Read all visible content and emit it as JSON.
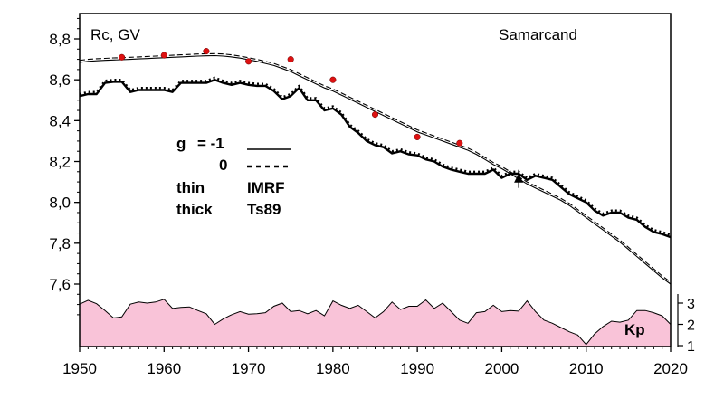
{
  "chart_data": {
    "type": "line",
    "title": "Samarcand",
    "ylabel": "Rc, GV",
    "kp_label": "Kp",
    "xlim": [
      1950,
      2020
    ],
    "ylim": [
      7.4,
      8.9
    ],
    "kp_ylim": [
      1,
      3
    ],
    "x_ticks": [
      1950,
      1960,
      1970,
      1980,
      1990,
      2000,
      2010,
      2020
    ],
    "x_tick_labels": [
      "1950",
      "1960",
      "1970",
      "1980",
      "1990",
      "2000",
      "2010",
      "2020"
    ],
    "y_ticks": [
      7.6,
      7.8,
      8.0,
      8.2,
      8.4,
      8.6,
      8.8
    ],
    "y_tick_labels": [
      "7,6",
      "7,8",
      "8,0",
      "8,2",
      "8,4",
      "8,6",
      "8,8"
    ],
    "kp_ticks": [
      1,
      2,
      3
    ],
    "kp_tick_labels": [
      "1",
      "2",
      "3"
    ],
    "legend": {
      "g_label": "g",
      "g_eq": "= -1",
      "zero_label": "0",
      "thin_label": "thin",
      "thin_model": "IMRF",
      "thick_label": "thick",
      "thick_model": "Ts89"
    },
    "x": [
      1950,
      1951,
      1952,
      1953,
      1954,
      1955,
      1956,
      1957,
      1958,
      1959,
      1960,
      1961,
      1962,
      1963,
      1964,
      1965,
      1966,
      1967,
      1968,
      1969,
      1970,
      1971,
      1972,
      1973,
      1974,
      1975,
      1976,
      1977,
      1978,
      1979,
      1980,
      1981,
      1982,
      1983,
      1984,
      1985,
      1986,
      1987,
      1988,
      1989,
      1990,
      1991,
      1992,
      1993,
      1994,
      1995,
      1996,
      1997,
      1998,
      1999,
      2000,
      2001,
      2002,
      2003,
      2004,
      2005,
      2006,
      2007,
      2008,
      2009,
      2010,
      2011,
      2012,
      2013,
      2014,
      2015,
      2016,
      2017,
      2018,
      2019,
      2020
    ],
    "series": [
      {
        "style": "thin-double-solid",
        "values": [
          8.685,
          8.69,
          8.693,
          8.695,
          8.697,
          8.698,
          8.7,
          8.702,
          8.704,
          8.706,
          8.708,
          8.71,
          8.712,
          8.714,
          8.716,
          8.717,
          8.718,
          8.716,
          8.712,
          8.706,
          8.698,
          8.69,
          8.68,
          8.67,
          8.655,
          8.64,
          8.62,
          8.6,
          8.58,
          8.56,
          8.545,
          8.525,
          8.505,
          8.485,
          8.465,
          8.445,
          8.425,
          8.405,
          8.385,
          8.365,
          8.345,
          8.33,
          8.315,
          8.3,
          8.285,
          8.27,
          8.255,
          8.235,
          8.21,
          8.185,
          8.165,
          8.14,
          8.115,
          8.09,
          8.07,
          8.05,
          8.03,
          8.01,
          7.985,
          7.955,
          7.925,
          7.895,
          7.865,
          7.835,
          7.805,
          7.77,
          7.735,
          7.7,
          7.665,
          7.63,
          7.6
        ]
      },
      {
        "style": "thin-dashed",
        "values": [
          8.695,
          8.7,
          8.703,
          8.705,
          8.707,
          8.708,
          8.71,
          8.712,
          8.714,
          8.716,
          8.718,
          8.72,
          8.722,
          8.724,
          8.726,
          8.727,
          8.728,
          8.726,
          8.722,
          8.716,
          8.708,
          8.7,
          8.69,
          8.68,
          8.665,
          8.65,
          8.63,
          8.61,
          8.59,
          8.57,
          8.555,
          8.535,
          8.515,
          8.495,
          8.475,
          8.455,
          8.435,
          8.415,
          8.395,
          8.375,
          8.355,
          8.34,
          8.325,
          8.31,
          8.295,
          8.28,
          8.265,
          8.245,
          8.22,
          8.195,
          8.175,
          8.15,
          8.125,
          8.1,
          8.08,
          8.06,
          8.04,
          8.02,
          7.995,
          7.965,
          7.935,
          7.905,
          7.875,
          7.845,
          7.815,
          7.78,
          7.745,
          7.71,
          7.675,
          7.64,
          7.61
        ]
      },
      {
        "style": "thick-solid",
        "values": [
          8.52,
          8.53,
          8.53,
          8.585,
          8.59,
          8.59,
          8.54,
          8.55,
          8.55,
          8.55,
          8.55,
          8.54,
          8.585,
          8.585,
          8.585,
          8.585,
          8.6,
          8.585,
          8.575,
          8.585,
          8.575,
          8.57,
          8.57,
          8.545,
          8.505,
          8.52,
          8.56,
          8.5,
          8.5,
          8.45,
          8.46,
          8.43,
          8.37,
          8.34,
          8.3,
          8.28,
          8.27,
          8.24,
          8.25,
          8.235,
          8.23,
          8.21,
          8.2,
          8.175,
          8.16,
          8.15,
          8.14,
          8.14,
          8.14,
          8.16,
          8.12,
          8.14,
          8.14,
          8.11,
          8.13,
          8.12,
          8.11,
          8.075,
          8.04,
          8.02,
          8.0,
          7.96,
          7.935,
          7.95,
          7.95,
          7.925,
          7.915,
          7.88,
          7.855,
          7.845,
          7.83
        ]
      },
      {
        "style": "thick-dotted",
        "values": [
          8.53,
          8.54,
          8.54,
          8.595,
          8.6,
          8.6,
          8.55,
          8.56,
          8.56,
          8.56,
          8.56,
          8.55,
          8.595,
          8.595,
          8.595,
          8.595,
          8.61,
          8.595,
          8.585,
          8.595,
          8.585,
          8.58,
          8.58,
          8.555,
          8.515,
          8.53,
          8.57,
          8.51,
          8.51,
          8.46,
          8.47,
          8.44,
          8.38,
          8.35,
          8.31,
          8.29,
          8.28,
          8.25,
          8.26,
          8.245,
          8.24,
          8.22,
          8.21,
          8.185,
          8.17,
          8.16,
          8.15,
          8.15,
          8.15,
          8.17,
          8.13,
          8.15,
          8.15,
          8.12,
          8.14,
          8.13,
          8.12,
          8.085,
          8.05,
          8.03,
          8.01,
          7.97,
          7.945,
          7.96,
          7.96,
          7.935,
          7.925,
          7.89,
          7.865,
          7.855,
          7.84
        ]
      }
    ],
    "observed_points": {
      "color": "#dd1111",
      "x": [
        1955,
        1960,
        1965,
        1970,
        1975,
        1980,
        1985,
        1990,
        1995
      ],
      "y": [
        8.71,
        8.72,
        8.74,
        8.69,
        8.7,
        8.6,
        8.43,
        8.32,
        8.29
      ]
    },
    "star_point": {
      "x": 2002,
      "y": 8.115
    },
    "kp": {
      "fill_color": "#f9c3d8",
      "x": [
        1950,
        1951,
        1952,
        1953,
        1954,
        1955,
        1956,
        1957,
        1958,
        1959,
        1960,
        1961,
        1962,
        1963,
        1964,
        1965,
        1966,
        1967,
        1968,
        1969,
        1970,
        1971,
        1972,
        1973,
        1974,
        1975,
        1976,
        1977,
        1978,
        1979,
        1980,
        1981,
        1982,
        1983,
        1984,
        1985,
        1986,
        1987,
        1988,
        1989,
        1990,
        1991,
        1992,
        1993,
        1994,
        1995,
        1996,
        1997,
        1998,
        1999,
        2000,
        2001,
        2002,
        2003,
        2004,
        2005,
        2006,
        2007,
        2008,
        2009,
        2010,
        2011,
        2012,
        2013,
        2014,
        2015,
        2016,
        2017,
        2018,
        2019,
        2020
      ],
      "values": [
        2.95,
        3.13,
        2.97,
        2.65,
        2.3,
        2.35,
        2.95,
        3.05,
        3.0,
        3.05,
        3.18,
        2.75,
        2.8,
        2.82,
        2.65,
        2.5,
        2.0,
        2.25,
        2.45,
        2.6,
        2.48,
        2.5,
        2.55,
        2.85,
        3.0,
        2.6,
        2.65,
        2.5,
        2.65,
        2.4,
        3.1,
        2.9,
        2.75,
        2.9,
        2.6,
        2.3,
        2.6,
        3.05,
        2.7,
        2.85,
        2.85,
        3.15,
        2.75,
        3.0,
        2.6,
        2.2,
        2.05,
        2.55,
        2.6,
        2.9,
        2.6,
        2.65,
        2.62,
        3.1,
        2.6,
        2.2,
        2.05,
        1.85,
        1.65,
        1.5,
        1.05,
        1.55,
        1.9,
        2.15,
        2.1,
        2.2,
        2.65,
        2.65,
        2.55,
        2.4,
        2.0
      ]
    }
  }
}
